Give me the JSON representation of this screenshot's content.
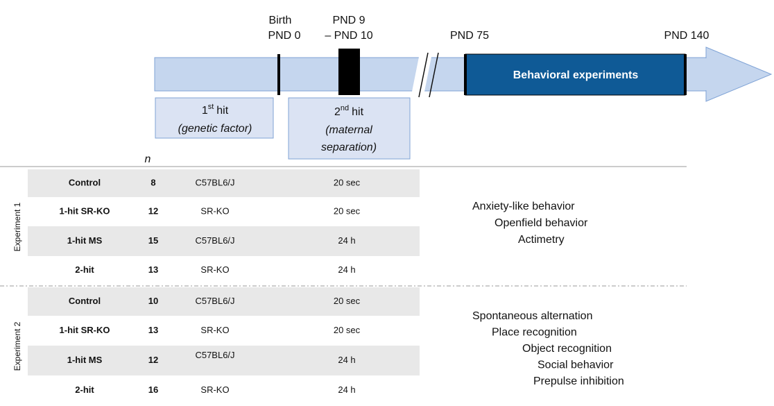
{
  "timeline": {
    "birth": [
      "Birth",
      "PND 0"
    ],
    "separation": [
      "PND 9",
      "– PND 10"
    ],
    "start": "PND 75",
    "end": "PND 140",
    "phase": "Behavioral experiments"
  },
  "hits": [
    {
      "number": "1",
      "suffix": "st",
      "label": "hit",
      "factor": [
        "(genetic factor)"
      ]
    },
    {
      "number": "2",
      "suffix": "nd",
      "label": "hit",
      "factor": [
        "(maternal",
        "separation)"
      ]
    }
  ],
  "table": {
    "n_header": "n",
    "experiments": [
      {
        "label": "Experiment 1",
        "rows": [
          [
            "Control",
            "8",
            "C57BL6/J",
            "20 sec"
          ],
          [
            "1-hit SR-KO",
            "12",
            "SR-KO",
            "20 sec"
          ],
          [
            "1-hit MS",
            "15",
            "C57BL6/J",
            "24 h"
          ],
          [
            "2-hit",
            "13",
            "SR-KO",
            "24 h"
          ]
        ],
        "behaviors": [
          "Anxiety-like behavior",
          "Openfield behavior",
          "Actimetry"
        ]
      },
      {
        "label": "Experiment 2",
        "rows": [
          [
            "Control",
            "10",
            "C57BL6/J",
            "20 sec"
          ],
          [
            "1-hit SR-KO",
            "13",
            "SR-KO",
            "20 sec"
          ],
          [
            "1-hit MS",
            "12",
            "C57BL6/J",
            "24 h"
          ],
          [
            "2-hit",
            "16",
            "SR-KO",
            "24 h"
          ]
        ],
        "behaviors": [
          "Spontaneous alternation",
          "Place recognition",
          "Object recognition",
          "Social behavior",
          "Prepulse inhibition"
        ]
      }
    ]
  }
}
